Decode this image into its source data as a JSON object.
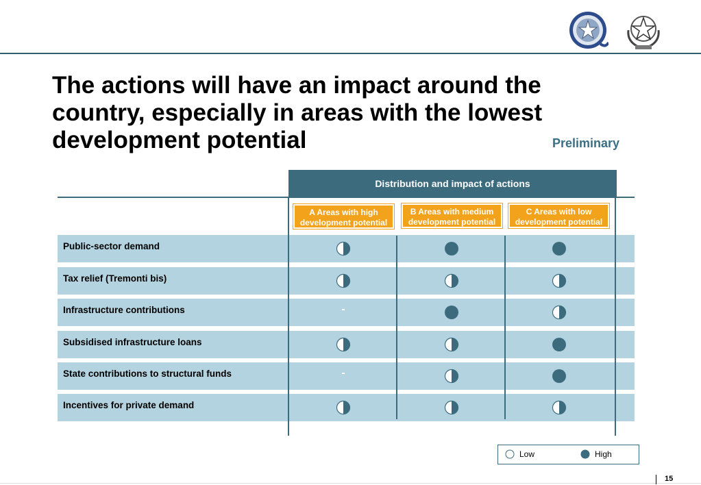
{
  "header": {
    "logos": [
      "emblem-ring-logo",
      "italian-republic-emblem"
    ]
  },
  "title": "The actions will have an impact around the country, especially in areas with the lowest development potential",
  "status": "Preliminary",
  "table": {
    "group_header": "Distribution and impact of actions",
    "columns": [
      "A  Areas with high development potential",
      "B Areas with medium development potential",
      "C Areas with low development potential"
    ],
    "rows": [
      {
        "label": "Public-sector demand",
        "values": [
          "half",
          "full",
          "full"
        ]
      },
      {
        "label": "Tax relief (Tremonti bis)",
        "values": [
          "half",
          "half",
          "half"
        ]
      },
      {
        "label": "Infrastructure contributions",
        "values": [
          "-",
          "full",
          "half"
        ]
      },
      {
        "label": "Subsidised infrastructure loans",
        "values": [
          "half",
          "half",
          "full"
        ]
      },
      {
        "label": "State contributions to structural funds",
        "values": [
          "-",
          "half",
          "full"
        ]
      },
      {
        "label": "Incentives for private demand",
        "values": [
          "half",
          "half",
          "half"
        ]
      }
    ]
  },
  "legend": {
    "low": "Low",
    "high": "High"
  },
  "colors": {
    "accent": "#3c6b7d",
    "orange": "#f3a21b",
    "row_fill": "#b2d3df"
  },
  "page_number": "15"
}
